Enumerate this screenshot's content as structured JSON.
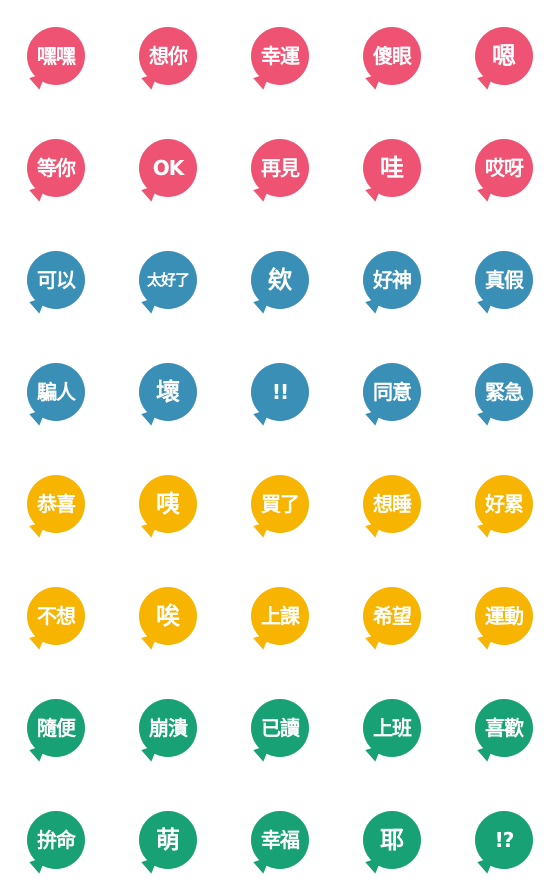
{
  "colors": {
    "pink": "#ef5374",
    "blue": "#3a8fb7",
    "yellow": "#f7b400",
    "green": "#17a174",
    "text": "#ffffff",
    "background": "#ffffff"
  },
  "stickers": [
    {
      "label": "嘿嘿",
      "color": "pink"
    },
    {
      "label": "想你",
      "color": "pink"
    },
    {
      "label": "幸運",
      "color": "pink"
    },
    {
      "label": "傻眼",
      "color": "pink"
    },
    {
      "label": "嗯",
      "color": "pink"
    },
    {
      "label": "等你",
      "color": "pink"
    },
    {
      "label": "OK",
      "color": "pink"
    },
    {
      "label": "再見",
      "color": "pink"
    },
    {
      "label": "哇",
      "color": "pink"
    },
    {
      "label": "哎呀",
      "color": "pink"
    },
    {
      "label": "可以",
      "color": "blue"
    },
    {
      "label": "太好了",
      "color": "blue"
    },
    {
      "label": "欸",
      "color": "blue"
    },
    {
      "label": "好神",
      "color": "blue"
    },
    {
      "label": "真假",
      "color": "blue"
    },
    {
      "label": "騙人",
      "color": "blue"
    },
    {
      "label": "壞",
      "color": "blue"
    },
    {
      "label": "!!",
      "color": "blue"
    },
    {
      "label": "同意",
      "color": "blue"
    },
    {
      "label": "緊急",
      "color": "blue"
    },
    {
      "label": "恭喜",
      "color": "yellow"
    },
    {
      "label": "咦",
      "color": "yellow"
    },
    {
      "label": "買了",
      "color": "yellow"
    },
    {
      "label": "想睡",
      "color": "yellow"
    },
    {
      "label": "好累",
      "color": "yellow"
    },
    {
      "label": "不想",
      "color": "yellow"
    },
    {
      "label": "唉",
      "color": "yellow"
    },
    {
      "label": "上課",
      "color": "yellow"
    },
    {
      "label": "希望",
      "color": "yellow"
    },
    {
      "label": "運動",
      "color": "yellow"
    },
    {
      "label": "隨便",
      "color": "green"
    },
    {
      "label": "崩潰",
      "color": "green"
    },
    {
      "label": "已讀",
      "color": "green"
    },
    {
      "label": "上班",
      "color": "green"
    },
    {
      "label": "喜歡",
      "color": "green"
    },
    {
      "label": "拚命",
      "color": "green"
    },
    {
      "label": "萌",
      "color": "green"
    },
    {
      "label": "幸福",
      "color": "green"
    },
    {
      "label": "耶",
      "color": "green"
    },
    {
      "label": "!?",
      "color": "green"
    }
  ]
}
